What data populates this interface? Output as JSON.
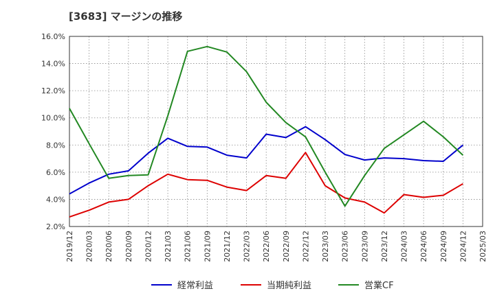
{
  "chart_data": {
    "type": "line",
    "title": "[3683]  マージンの推移",
    "xlabel": "",
    "ylabel": "",
    "x": [
      "2019/12",
      "2020/03",
      "2020/06",
      "2020/09",
      "2020/12",
      "2021/03",
      "2021/06",
      "2021/09",
      "2021/12",
      "2022/03",
      "2022/06",
      "2022/09",
      "2022/12",
      "2023/03",
      "2023/06",
      "2023/09",
      "2023/12",
      "2024/03",
      "2024/06",
      "2024/09",
      "2024/12",
      "2025/03"
    ],
    "ylim": [
      2.0,
      16.0
    ],
    "yticks": [
      2.0,
      4.0,
      6.0,
      8.0,
      10.0,
      12.0,
      14.0,
      16.0
    ],
    "ytick_labels": [
      "2.0%",
      "4.0%",
      "6.0%",
      "8.0%",
      "10.0%",
      "12.0%",
      "14.0%",
      "16.0%"
    ],
    "grid": true,
    "legend_position": "bottom",
    "series": [
      {
        "name": "経常利益",
        "color": "#0000cc",
        "values": [
          4.4,
          5.2,
          5.85,
          6.1,
          7.4,
          8.5,
          7.9,
          7.85,
          7.25,
          7.05,
          8.8,
          8.55,
          9.35,
          8.4,
          7.3,
          6.9,
          7.05,
          7.0,
          6.85,
          6.8,
          8.0,
          null
        ]
      },
      {
        "name": "当期純利益",
        "color": "#dd0000",
        "values": [
          2.7,
          3.2,
          3.8,
          4.0,
          5.0,
          5.85,
          5.45,
          5.4,
          4.9,
          4.65,
          5.75,
          5.55,
          7.45,
          5.0,
          4.1,
          3.8,
          3.0,
          4.35,
          4.15,
          4.3,
          5.15,
          null
        ]
      },
      {
        "name": "営業CF",
        "color": "#228822",
        "values": [
          10.7,
          8.1,
          5.55,
          5.75,
          5.8,
          10.15,
          14.9,
          15.25,
          14.85,
          13.4,
          11.15,
          9.65,
          8.6,
          6.0,
          3.5,
          5.75,
          7.75,
          8.75,
          9.75,
          8.6,
          7.25,
          null
        ]
      }
    ]
  }
}
